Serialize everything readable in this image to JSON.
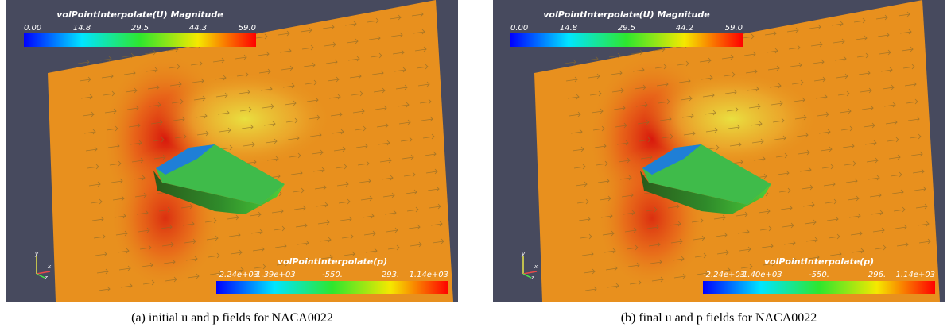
{
  "panels": [
    {
      "u_bar": {
        "title": "volPointInterpolate(U) Magnitude",
        "ticks": [
          "0.00",
          "14.8",
          "29.5",
          "44.3",
          "59.0"
        ]
      },
      "p_bar": {
        "title": "volPointInterpolate(p)",
        "ticks": [
          "-2.24e+03",
          "-1.39e+03",
          "-550.",
          "293.",
          "1.14e+03"
        ]
      },
      "triad": [
        "y",
        "x",
        "z"
      ],
      "caption": "(a) initial u and p fields for NACA0022"
    },
    {
      "u_bar": {
        "title": "volPointInterpolate(U) Magnitude",
        "ticks": [
          "0.00",
          "14.8",
          "29.5",
          "44.2",
          "59.0"
        ]
      },
      "p_bar": {
        "title": "volPointInterpolate(p)",
        "ticks": [
          "-2.24e+03",
          "-1.40e+03",
          "-550.",
          "296.",
          "1.14e+03"
        ]
      },
      "triad": [
        "y",
        "x",
        "z"
      ],
      "caption": "(b) final u and p fields for NACA0022"
    }
  ]
}
